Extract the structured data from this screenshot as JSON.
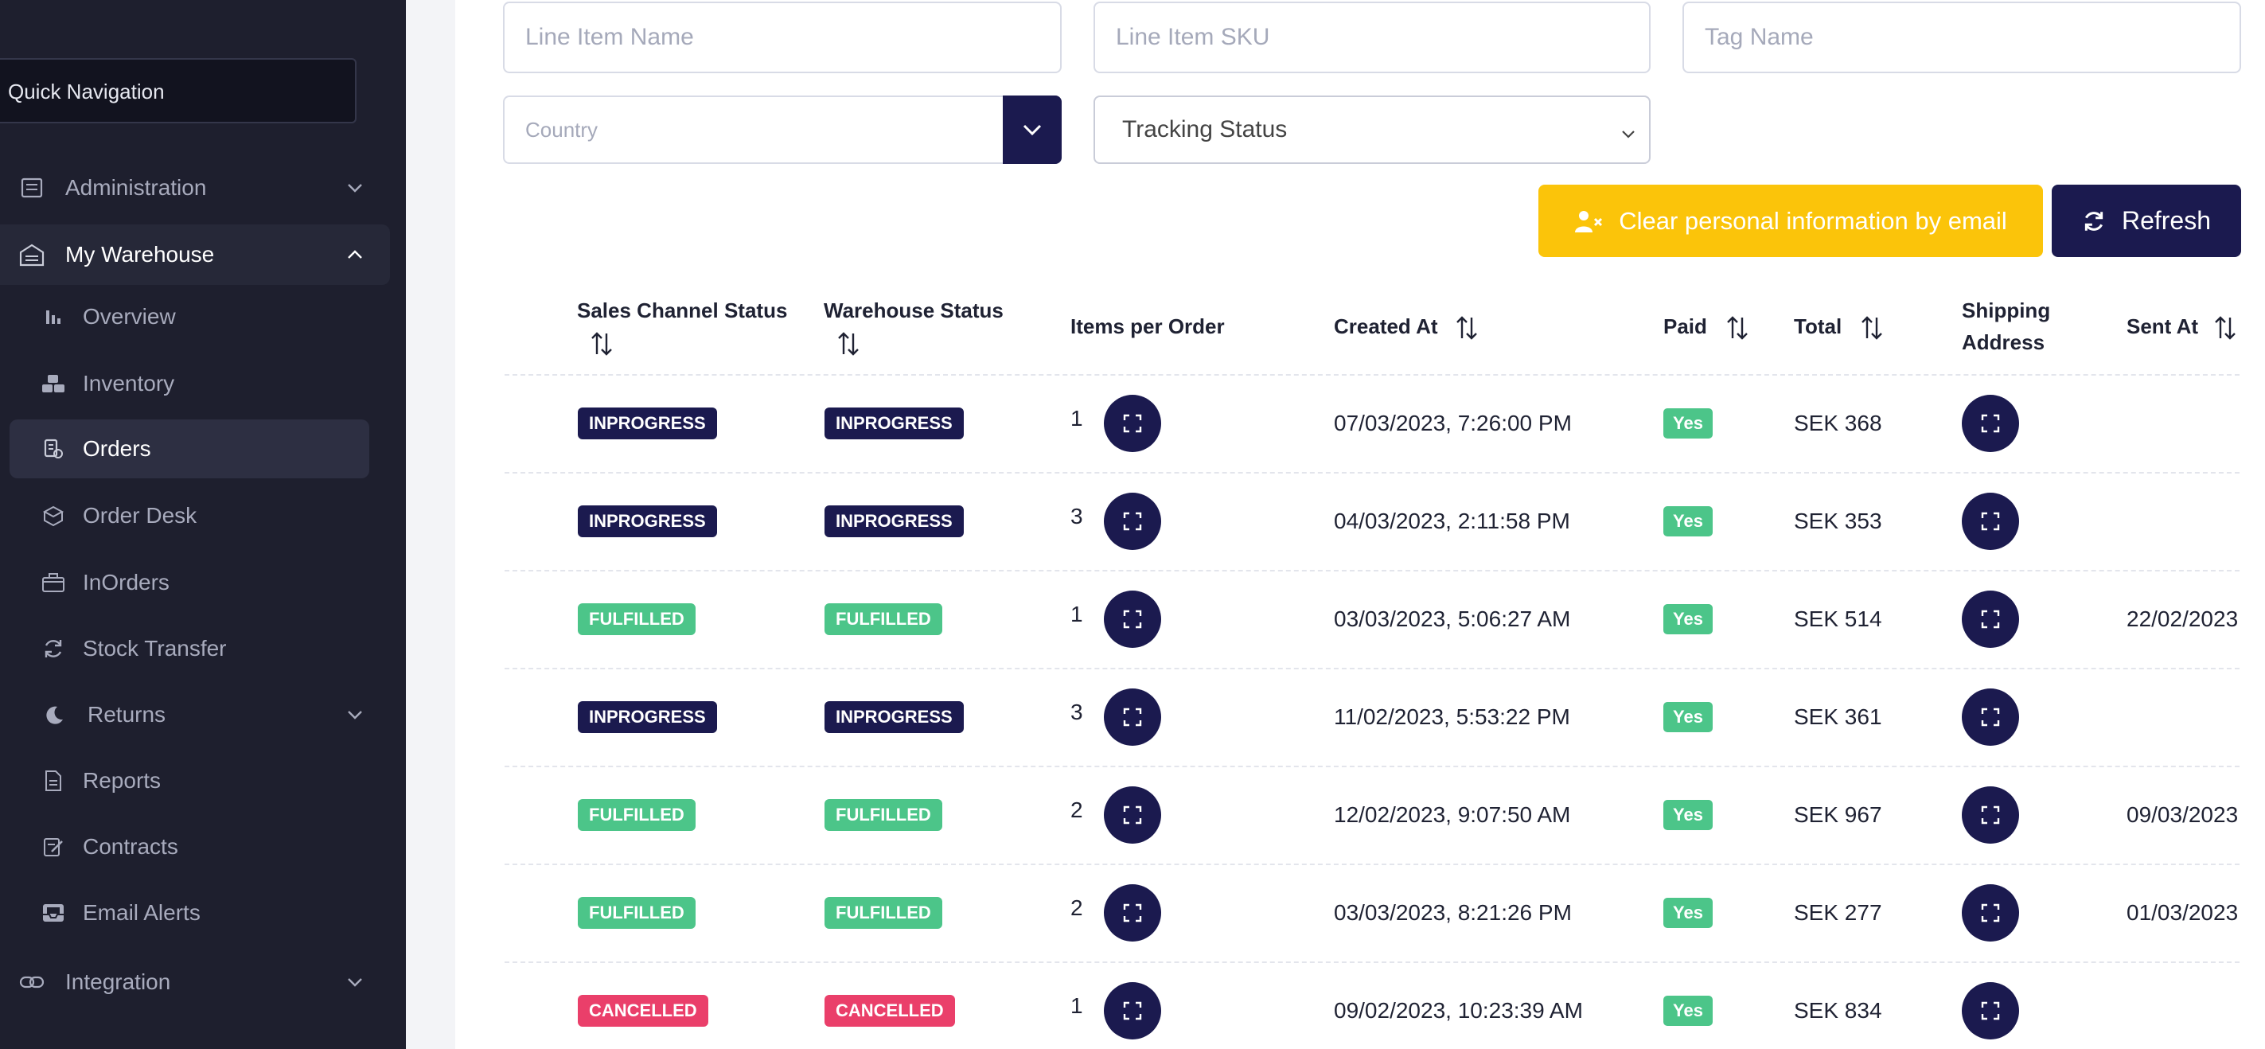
{
  "sidebar": {
    "quick_nav": "Quick Navigation",
    "groups": [
      {
        "label": "Administration",
        "icon": "admin-icon"
      },
      {
        "label": "My Warehouse",
        "icon": "warehouse-icon"
      },
      {
        "label": "Returns",
        "icon": "returns-icon"
      },
      {
        "label": "Integration",
        "icon": "integration-icon"
      }
    ],
    "items": [
      {
        "label": "Overview",
        "icon": "bar-chart-icon"
      },
      {
        "label": "Inventory",
        "icon": "boxes-icon"
      },
      {
        "label": "Orders",
        "icon": "orders-icon"
      },
      {
        "label": "Order Desk",
        "icon": "order-desk-icon"
      },
      {
        "label": "InOrders",
        "icon": "inorders-icon"
      },
      {
        "label": "Stock Transfer",
        "icon": "refresh-icon"
      },
      {
        "label": "Reports",
        "icon": "document-icon"
      },
      {
        "label": "Contracts",
        "icon": "contract-icon"
      },
      {
        "label": "Email Alerts",
        "icon": "inbox-icon"
      }
    ]
  },
  "filters": {
    "line_item_name_placeholder": "Line Item Name",
    "line_item_sku_placeholder": "Line Item SKU",
    "tag_name_placeholder": "Tag Name",
    "country_placeholder": "Country",
    "tracking_status": "Tracking Status"
  },
  "actions": {
    "clear_personal": "Clear personal information by email",
    "refresh": "Refresh"
  },
  "colors": {
    "navy": "#1b1a4f",
    "yellow": "#fbc40a",
    "green": "#4cc589",
    "red": "#ea3f6a",
    "sidebar": "#1e1f2e"
  },
  "table": {
    "headers": {
      "sales_channel_status": "Sales Channel Status",
      "warehouse_status": "Warehouse Status",
      "items_per_order": "Items per Order",
      "created_at": "Created At",
      "paid": "Paid",
      "total": "Total",
      "shipping_address_1": "Shipping",
      "shipping_address_2": "Address",
      "sent_at": "Sent At"
    },
    "rows": [
      {
        "sales_status": "INPROGRESS",
        "warehouse_status": "INPROGRESS",
        "items": "1",
        "created_at": "07/03/2023, 7:26:00 PM",
        "paid": "Yes",
        "total": "SEK 368",
        "sent_at": ""
      },
      {
        "sales_status": "INPROGRESS",
        "warehouse_status": "INPROGRESS",
        "items": "3",
        "created_at": "04/03/2023, 2:11:58 PM",
        "paid": "Yes",
        "total": "SEK 353",
        "sent_at": ""
      },
      {
        "sales_status": "FULFILLED",
        "warehouse_status": "FULFILLED",
        "items": "1",
        "created_at": "03/03/2023, 5:06:27 AM",
        "paid": "Yes",
        "total": "SEK 514",
        "sent_at": "22/02/2023"
      },
      {
        "sales_status": "INPROGRESS",
        "warehouse_status": "INPROGRESS",
        "items": "3",
        "created_at": "11/02/2023, 5:53:22 PM",
        "paid": "Yes",
        "total": "SEK 361",
        "sent_at": ""
      },
      {
        "sales_status": "FULFILLED",
        "warehouse_status": "FULFILLED",
        "items": "2",
        "created_at": "12/02/2023, 9:07:50 AM",
        "paid": "Yes",
        "total": "SEK 967",
        "sent_at": "09/03/2023"
      },
      {
        "sales_status": "FULFILLED",
        "warehouse_status": "FULFILLED",
        "items": "2",
        "created_at": "03/03/2023, 8:21:26 PM",
        "paid": "Yes",
        "total": "SEK 277",
        "sent_at": "01/03/2023"
      },
      {
        "sales_status": "CANCELLED",
        "warehouse_status": "CANCELLED",
        "items": "1",
        "created_at": "09/02/2023, 10:23:39 AM",
        "paid": "Yes",
        "total": "SEK 834",
        "sent_at": ""
      }
    ]
  }
}
